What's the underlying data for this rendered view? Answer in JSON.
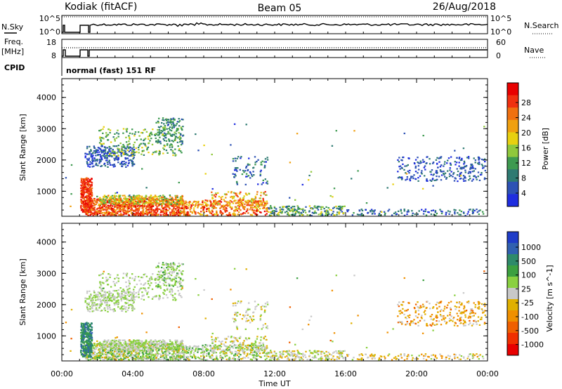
{
  "header": {
    "station": "Kodiak (fitACF)",
    "beam": "Beam 05",
    "date": "26/Aug/2018"
  },
  "param_panels": {
    "nsky": {
      "label": "N.Sky",
      "ticks": [
        "10^5",
        "10^0"
      ],
      "right_label": "N.Search",
      "right_ticks": [
        "10^5",
        "10^0"
      ]
    },
    "freq": {
      "label_line1": "Freq.",
      "label_line2": "[MHz]",
      "ticks": [
        "18",
        "8"
      ],
      "right_label": "Nave",
      "right_ticks": [
        "60",
        "0"
      ]
    },
    "cpid": {
      "label": "CPID",
      "value": "normal (fast) 151 RF"
    }
  },
  "colors": {
    "power_scale": [
      "#1f2de0",
      "#2d52b4",
      "#2e7a72",
      "#3e9a50",
      "#90c83c",
      "#e8d010",
      "#f0a010",
      "#f07010",
      "#f03010",
      "#e80000"
    ],
    "velocity_scale": [
      "#1f3cc8",
      "#3060b0",
      "#2e8a6a",
      "#3ca040",
      "#8ad040",
      "#c8c8c8",
      "#e0b000",
      "#f09000",
      "#f06000",
      "#f03000",
      "#e80000"
    ]
  },
  "chart_data": [
    {
      "type": "heatmap",
      "name": "power",
      "ylabel": "Slant Range [km]",
      "yticks": [
        1000,
        2000,
        3000,
        4000
      ],
      "ylim": [
        200,
        4600
      ],
      "xticks": [
        "00:00",
        "04:00",
        "08:00",
        "12:00",
        "16:00",
        "20:00",
        "00:00"
      ],
      "colorbar_label": "Power [dB]",
      "colorbar_ticks": [
        "4",
        "8",
        "12",
        "16",
        "20",
        "24",
        "28"
      ]
    },
    {
      "type": "heatmap",
      "name": "velocity",
      "ylabel": "Slant Range [km]",
      "yticks": [
        1000,
        2000,
        3000,
        4000
      ],
      "ylim": [
        200,
        4600
      ],
      "xticks": [
        "00:00",
        "04:00",
        "08:00",
        "12:00",
        "16:00",
        "20:00",
        "00:00"
      ],
      "xlabel": "Time UT",
      "colorbar_label": "Velocity [m s^-1]",
      "colorbar_ticks": [
        "1000",
        "500",
        "100",
        "25",
        "-25",
        "-100",
        "-500",
        "-1000"
      ]
    }
  ]
}
